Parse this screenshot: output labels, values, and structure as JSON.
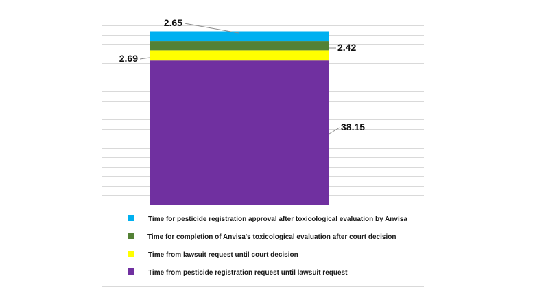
{
  "chart_data": {
    "type": "bar",
    "stacked": true,
    "categories": [
      ""
    ],
    "ylim": [
      0,
      50
    ],
    "grid": true,
    "legend_position": "bottom",
    "series": [
      {
        "name": "Time from pesticide registration request until lawsuit request",
        "values": [
          38.15
        ],
        "color": "#7030a0",
        "label": "38.15"
      },
      {
        "name": "Time from lawsuit request until court decision",
        "values": [
          2.69
        ],
        "color": "#ffff00",
        "label": "2.69"
      },
      {
        "name": "Time for completion of Anvisa's toxicological evaluation after court decision",
        "values": [
          2.42
        ],
        "color": "#538135",
        "label": "2.42"
      },
      {
        "name": "Time for pesticide registration approval after toxicological evaluation by Anvisa",
        "values": [
          2.65
        ],
        "color": "#00b0f0",
        "label": "2.65"
      }
    ],
    "legend_order": [
      3,
      2,
      1,
      0
    ]
  }
}
